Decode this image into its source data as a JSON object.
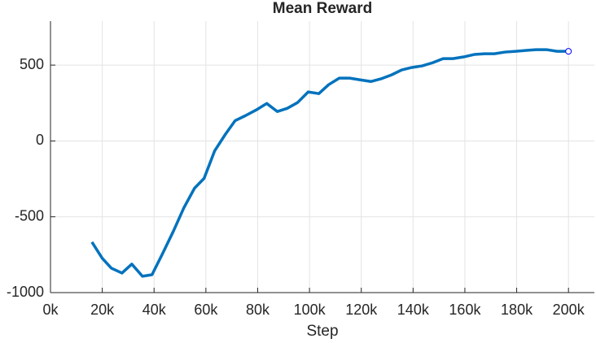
{
  "chart_data": {
    "type": "line",
    "title": "Mean Reward",
    "x_label": "Step",
    "xlim": [
      0,
      210000
    ],
    "ylim": [
      -1000,
      790
    ],
    "xticks": [
      {
        "value": 0,
        "label": "0k"
      },
      {
        "value": 20000,
        "label": "20k"
      },
      {
        "value": 40000,
        "label": "40k"
      },
      {
        "value": 60000,
        "label": "60k"
      },
      {
        "value": 80000,
        "label": "80k"
      },
      {
        "value": 100000,
        "label": "100k"
      },
      {
        "value": 120000,
        "label": "120k"
      },
      {
        "value": 140000,
        "label": "140k"
      },
      {
        "value": 160000,
        "label": "160k"
      },
      {
        "value": 180000,
        "label": "180k"
      },
      {
        "value": 200000,
        "label": "200k"
      }
    ],
    "yticks": [
      -1000,
      -500,
      0,
      500
    ],
    "grid": true,
    "color": "#0072bd",
    "x": [
      16000,
      20000,
      23500,
      27600,
      31400,
      35500,
      39200,
      43300,
      47400,
      51500,
      55600,
      59300,
      63400,
      67500,
      71300,
      75300,
      79400,
      83500,
      87600,
      91400,
      95400,
      99500,
      103600,
      107400,
      111500,
      115500,
      119600,
      123700,
      127500,
      131600,
      135600,
      139400,
      143500,
      147600,
      151600,
      155400,
      159500,
      163600,
      167700,
      171400,
      175500,
      179600,
      183700,
      187400,
      191500,
      195600,
      200000
    ],
    "values": [
      -667,
      -774,
      -839,
      -871,
      -812,
      -892,
      -882,
      -742,
      -597,
      -441,
      -312,
      -247,
      -65,
      43,
      134,
      167,
      204,
      247,
      194,
      215,
      253,
      323,
      312,
      371,
      414,
      414,
      403,
      392,
      409,
      435,
      468,
      484,
      495,
      516,
      543,
      543,
      554,
      570,
      575,
      575,
      586,
      591,
      597,
      602,
      602,
      591,
      591
    ]
  }
}
